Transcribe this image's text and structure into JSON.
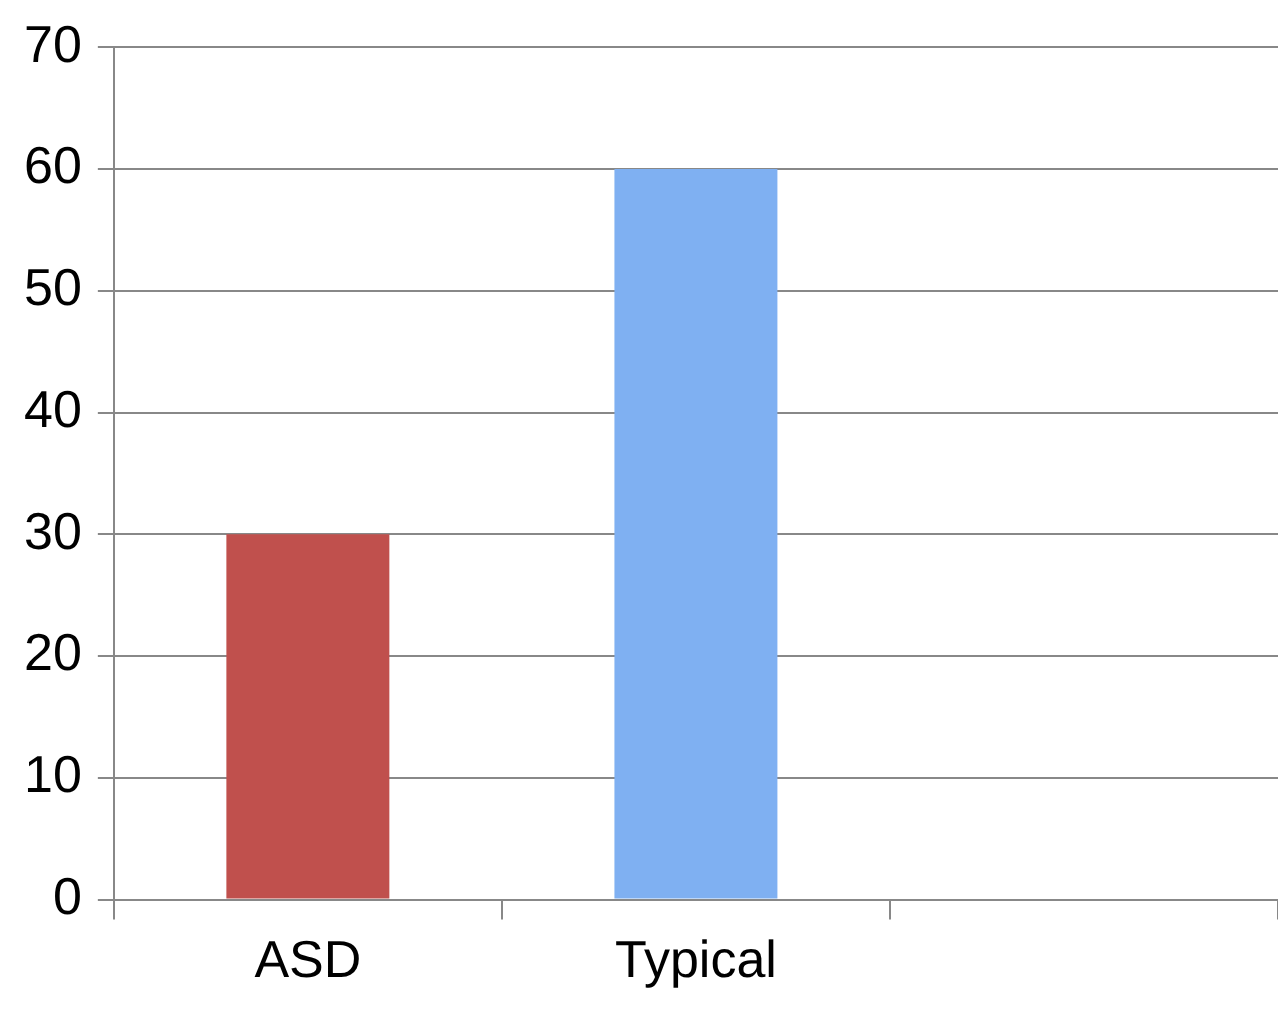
{
  "chart_data": {
    "type": "bar",
    "categories": [
      "ASD",
      "Typical",
      null
    ],
    "series": [
      {
        "color": "#c0504d",
        "values": [
          30,
          null,
          null
        ]
      },
      {
        "color": "#7fb0f2",
        "values": [
          null,
          60,
          null
        ]
      }
    ],
    "stacked": true,
    "ylim": [
      0,
      70
    ],
    "yticks": [
      0,
      10,
      20,
      30,
      40,
      50,
      60,
      70
    ],
    "grid": "y",
    "legend": false
  }
}
